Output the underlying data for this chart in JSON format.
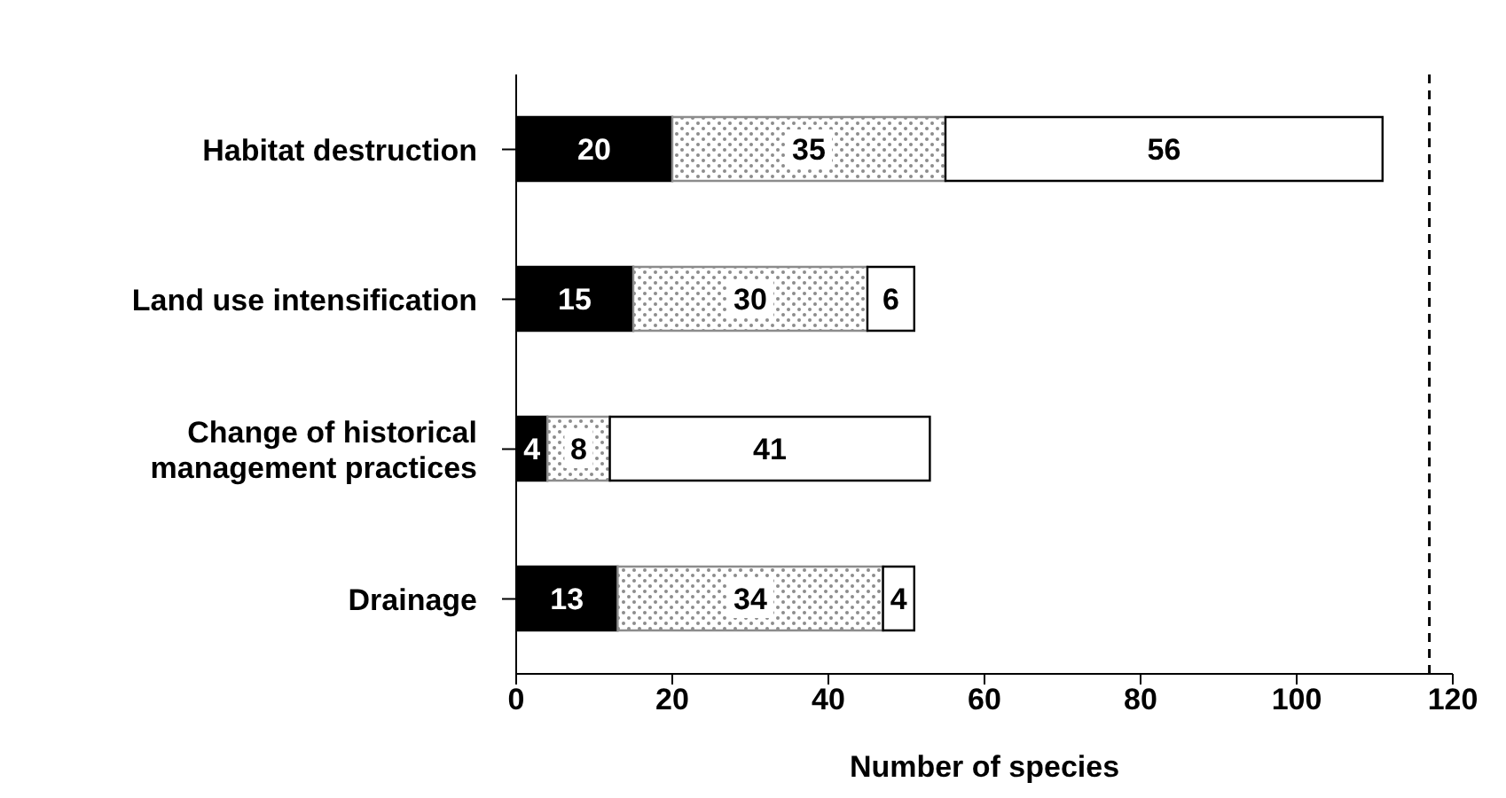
{
  "chart_data": {
    "type": "bar",
    "orientation": "horizontal",
    "stacked": true,
    "xlabel": "Number of species",
    "categories": [
      "Habitat destruction",
      "Land use intensification",
      "Change of historical\nmanagement practices",
      "Drainage"
    ],
    "series": [
      {
        "color": "#000000",
        "values": [
          20,
          15,
          4,
          13
        ]
      },
      {
        "color": "#8c8c8c",
        "values": [
          35,
          30,
          8,
          34
        ]
      },
      {
        "color": "#ffffff",
        "values": [
          56,
          6,
          41,
          4
        ]
      }
    ],
    "xlim": [
      0,
      120
    ],
    "xticks": [
      0,
      20,
      40,
      60,
      80,
      100,
      120
    ],
    "grid": false,
    "legend": false,
    "data_labels": true,
    "ref_lines": [
      {
        "axis": "x",
        "value": 117,
        "line_style": "dashed",
        "color": "#000000"
      }
    ]
  }
}
